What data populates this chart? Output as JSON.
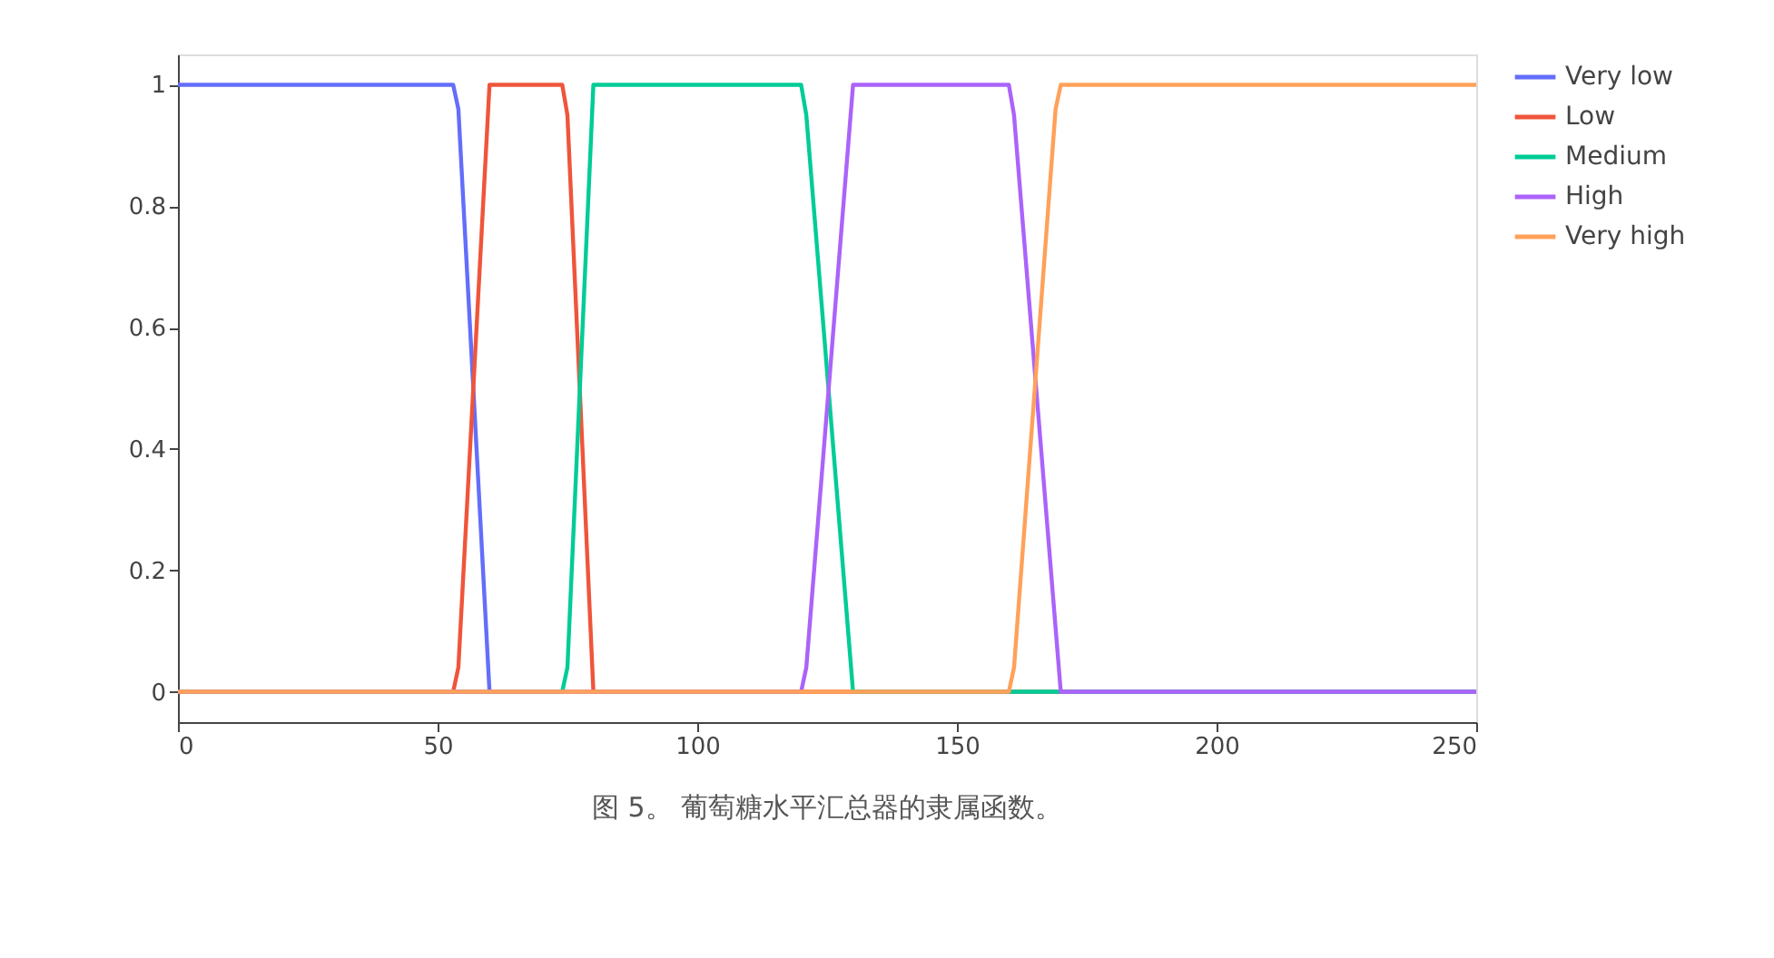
{
  "chart_data": {
    "type": "line",
    "annotations": [
      "图 5。 葡萄糖水平汇总器的隶属函数。"
    ],
    "xlim": [
      0,
      250
    ],
    "xticks": [
      0,
      50,
      100,
      150,
      200,
      250
    ],
    "ylim": [
      -0.05,
      1.05
    ],
    "yticks": [
      0,
      0.2,
      0.4,
      0.6,
      0.8,
      1
    ],
    "grid": false,
    "legend": "top right",
    "marker": "none",
    "line_style": "solid",
    "series": [
      {
        "name": "Very low",
        "color": "#636efa",
        "x": [
          0,
          53,
          54,
          60
        ],
        "values": [
          1,
          1,
          0.96,
          0
        ]
      },
      {
        "name": "Low",
        "color": "#ef553b",
        "x": [
          0,
          53,
          54,
          60,
          74,
          75,
          80,
          250
        ],
        "values": [
          0,
          0,
          0.04,
          1,
          1,
          0.95,
          0,
          0
        ]
      },
      {
        "name": "Medium",
        "color": "#00cc96",
        "x": [
          0,
          74,
          75,
          80,
          120,
          121,
          130,
          250
        ],
        "values": [
          0,
          0,
          0.04,
          1,
          1,
          0.95,
          0,
          0
        ]
      },
      {
        "name": "High",
        "color": "#ab63fa",
        "x": [
          0,
          120,
          121,
          130,
          160,
          161,
          170,
          250
        ],
        "values": [
          0,
          0,
          0.04,
          1,
          1,
          0.95,
          0,
          0
        ]
      },
      {
        "name": "Very high",
        "color": "#ffa15a",
        "x": [
          0,
          160,
          161,
          169,
          170,
          250
        ],
        "values": [
          0,
          0,
          0.04,
          0.96,
          1,
          1
        ]
      }
    ]
  }
}
